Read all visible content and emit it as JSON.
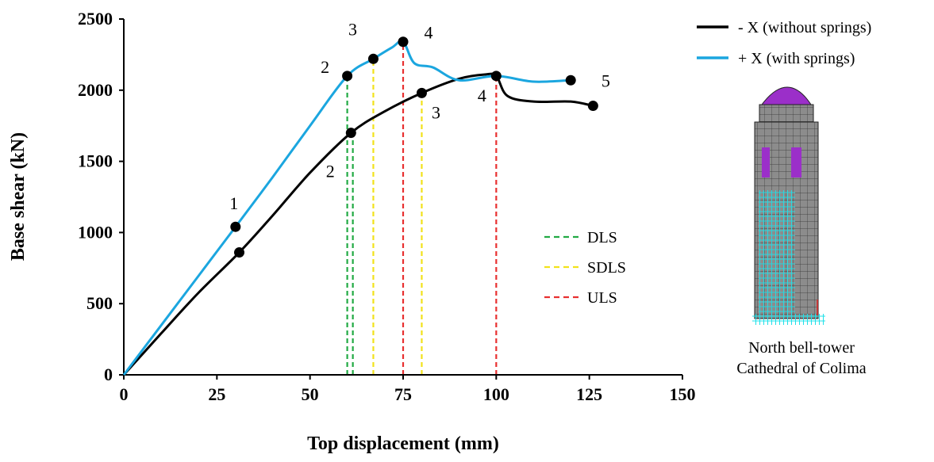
{
  "chart_data": {
    "type": "line",
    "xlabel": "Top displacement (mm)",
    "ylabel": "Base shear (kN)",
    "xlim": [
      0,
      150
    ],
    "ylim": [
      0,
      2500
    ],
    "xticks": [
      "0",
      "25",
      "50",
      "75",
      "100",
      "125",
      "150"
    ],
    "yticks": [
      "0",
      "500",
      "1000",
      "1500",
      "2000",
      "2500"
    ],
    "grid": false,
    "legend_placement": "top-right-outside",
    "series": [
      {
        "name": "- X (without springs)",
        "color": "#000000",
        "x": [
          0,
          10,
          20,
          31,
          40,
          50,
          61,
          70,
          80,
          90,
          97,
          100,
          103,
          110,
          120,
          126
        ],
        "y": [
          0,
          290,
          575,
          860,
          1120,
          1420,
          1700,
          1850,
          1980,
          2080,
          2110,
          2100,
          1960,
          1920,
          1920,
          1890
        ]
      },
      {
        "name": "+ X (with springs)",
        "color": "#1BA6DF",
        "x": [
          0,
          15,
          30,
          40,
          50,
          60,
          67,
          72,
          75,
          78,
          83,
          90,
          100,
          110,
          120
        ],
        "y": [
          0,
          520,
          1040,
          1390,
          1750,
          2100,
          2220,
          2300,
          2340,
          2190,
          2160,
          2070,
          2100,
          2060,
          2070
        ]
      }
    ],
    "markers": [
      {
        "x": 30,
        "y": 1040,
        "label": "1"
      },
      {
        "x": 31,
        "y": 860,
        "label": ""
      },
      {
        "x": 60,
        "y": 2100,
        "label": "2"
      },
      {
        "x": 61,
        "y": 1700,
        "label": "2"
      },
      {
        "x": 67,
        "y": 2220,
        "label": "3"
      },
      {
        "x": 80,
        "y": 1980,
        "label": "3"
      },
      {
        "x": 75,
        "y": 2340,
        "label": "4"
      },
      {
        "x": 100,
        "y": 2100,
        "label": "4"
      },
      {
        "x": 120,
        "y": 2070,
        "label": ""
      },
      {
        "x": 126,
        "y": 1890,
        "label": "5"
      }
    ],
    "limit_lines": [
      {
        "x": 60,
        "y_top": 2100,
        "color": "#22AA44"
      },
      {
        "x": 61.5,
        "y_top": 1700,
        "color": "#22AA44"
      },
      {
        "x": 67,
        "y_top": 2220,
        "color": "#F2E21A"
      },
      {
        "x": 80,
        "y_top": 1980,
        "color": "#F2E21A"
      },
      {
        "x": 75,
        "y_top": 2340,
        "color": "#E83030"
      },
      {
        "x": 100,
        "y_top": 2100,
        "color": "#E83030"
      }
    ],
    "limit_legend": [
      {
        "label": "DLS",
        "color": "#22AA44"
      },
      {
        "label": "SDLS",
        "color": "#F2E21A"
      },
      {
        "label": "ULS",
        "color": "#E83030"
      }
    ]
  },
  "caption": {
    "line1": "North bell-tower",
    "line2": "Cathedral of Colima"
  },
  "model_colors": {
    "wall": "#8C8C8C",
    "dome": "#9B2FC9",
    "openings": "#9B2FC9",
    "springs": "#1FE0E8"
  }
}
